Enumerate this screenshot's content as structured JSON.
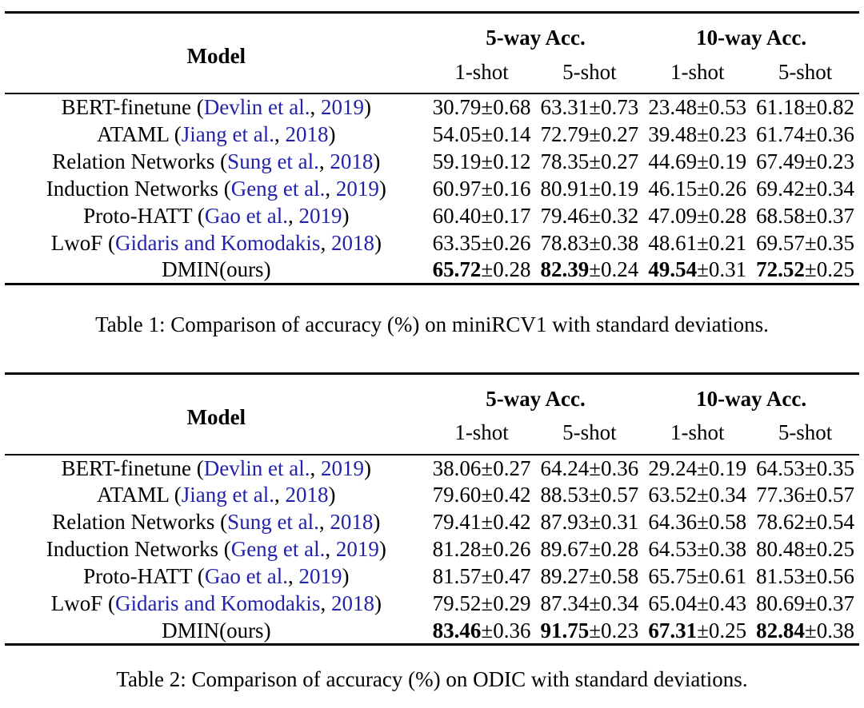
{
  "colors": {
    "citation_link_blue": "#2222aa",
    "text": "#000000",
    "background": "#ffffff"
  },
  "table1": {
    "header": {
      "model": "Model",
      "group1": "5-way Acc.",
      "group2": "10-way Acc.",
      "sub": [
        "1-shot",
        "5-shot",
        "1-shot",
        "5-shot"
      ]
    },
    "rows": [
      {
        "prefix": "BERT-finetune (",
        "author": "Devlin et al.",
        "sep": ", ",
        "year": "2019",
        "suffix": ")",
        "cells": [
          {
            "main": "30.79",
            "pm": "±0.68"
          },
          {
            "main": "63.31",
            "pm": "±0.73"
          },
          {
            "main": "23.48",
            "pm": "±0.53"
          },
          {
            "main": "61.18",
            "pm": "±0.82"
          }
        ]
      },
      {
        "prefix": "ATAML (",
        "author": "Jiang et al.",
        "sep": ", ",
        "year": "2018",
        "suffix": ")",
        "cells": [
          {
            "main": "54.05",
            "pm": "±0.14"
          },
          {
            "main": "72.79",
            "pm": "±0.27"
          },
          {
            "main": "39.48",
            "pm": "±0.23"
          },
          {
            "main": "61.74",
            "pm": "±0.36"
          }
        ]
      },
      {
        "prefix": "Relation Networks (",
        "author": "Sung et al.",
        "sep": ", ",
        "year": "2018",
        "suffix": ")",
        "cells": [
          {
            "main": "59.19",
            "pm": "±0.12"
          },
          {
            "main": "78.35",
            "pm": "±0.27"
          },
          {
            "main": "44.69",
            "pm": "±0.19"
          },
          {
            "main": "67.49",
            "pm": "±0.23"
          }
        ]
      },
      {
        "prefix": "Induction Networks (",
        "author": "Geng et al.",
        "sep": ", ",
        "year": "2019",
        "suffix": ")",
        "cells": [
          {
            "main": "60.97",
            "pm": "±0.16"
          },
          {
            "main": "80.91",
            "pm": "±0.19"
          },
          {
            "main": "46.15",
            "pm": "±0.26"
          },
          {
            "main": "69.42",
            "pm": "±0.34"
          }
        ]
      },
      {
        "prefix": "Proto-HATT (",
        "author": "Gao et al.",
        "sep": ", ",
        "year": "2019",
        "suffix": ")",
        "cells": [
          {
            "main": "60.40",
            "pm": "±0.17"
          },
          {
            "main": "79.46",
            "pm": "±0.32"
          },
          {
            "main": "47.09",
            "pm": "±0.28"
          },
          {
            "main": "68.58",
            "pm": "±0.37"
          }
        ]
      },
      {
        "prefix": "LwoF (",
        "author": "Gidaris and Komodakis",
        "sep": ", ",
        "year": "2018",
        "suffix": ")",
        "cells": [
          {
            "main": "63.35",
            "pm": "±0.26"
          },
          {
            "main": "78.83",
            "pm": "±0.38"
          },
          {
            "main": "48.61",
            "pm": "±0.21"
          },
          {
            "main": "69.57",
            "pm": "±0.35"
          }
        ]
      },
      {
        "prefix": "DMIN(ours)",
        "author": "",
        "sep": "",
        "year": "",
        "suffix": "",
        "cells": [
          {
            "main": "65.72",
            "pm": "±0.28"
          },
          {
            "main": "82.39",
            "pm": "±0.24"
          },
          {
            "main": "49.54",
            "pm": "±0.31"
          },
          {
            "main": "72.52",
            "pm": "±0.25"
          }
        ]
      }
    ],
    "caption": "Table 1: Comparison of accuracy (%) on miniRCV1 with standard deviations."
  },
  "table2": {
    "header": {
      "model": "Model",
      "group1": "5-way Acc.",
      "group2": "10-way Acc.",
      "sub": [
        "1-shot",
        "5-shot",
        "1-shot",
        "5-shot"
      ]
    },
    "rows": [
      {
        "prefix": "BERT-finetune (",
        "author": "Devlin et al.",
        "sep": ", ",
        "year": "2019",
        "suffix": ")",
        "cells": [
          {
            "main": "38.06",
            "pm": "±0.27"
          },
          {
            "main": "64.24",
            "pm": "±0.36"
          },
          {
            "main": "29.24",
            "pm": "±0.19"
          },
          {
            "main": "64.53",
            "pm": "±0.35"
          }
        ]
      },
      {
        "prefix": "ATAML (",
        "author": "Jiang et al.",
        "sep": ", ",
        "year": "2018",
        "suffix": ")",
        "cells": [
          {
            "main": "79.60",
            "pm": "±0.42"
          },
          {
            "main": "88.53",
            "pm": "±0.57"
          },
          {
            "main": "63.52",
            "pm": "±0.34"
          },
          {
            "main": "77.36",
            "pm": "±0.57"
          }
        ]
      },
      {
        "prefix": "Relation Networks (",
        "author": "Sung et al.",
        "sep": ", ",
        "year": "2018",
        "suffix": ")",
        "cells": [
          {
            "main": "79.41",
            "pm": "±0.42"
          },
          {
            "main": "87.93",
            "pm": "±0.31"
          },
          {
            "main": "64.36",
            "pm": "±0.58"
          },
          {
            "main": "78.62",
            "pm": "±0.54"
          }
        ]
      },
      {
        "prefix": "Induction Networks (",
        "author": "Geng et al.",
        "sep": ", ",
        "year": "2019",
        "suffix": ")",
        "cells": [
          {
            "main": "81.28",
            "pm": "±0.26"
          },
          {
            "main": "89.67",
            "pm": "±0.28"
          },
          {
            "main": "64.53",
            "pm": "±0.38"
          },
          {
            "main": "80.48",
            "pm": "±0.25"
          }
        ]
      },
      {
        "prefix": "Proto-HATT (",
        "author": "Gao et al.",
        "sep": ", ",
        "year": "2019",
        "suffix": ")",
        "cells": [
          {
            "main": "81.57",
            "pm": "±0.47"
          },
          {
            "main": "89.27",
            "pm": "±0.58"
          },
          {
            "main": "65.75",
            "pm": "±0.61"
          },
          {
            "main": "81.53",
            "pm": "±0.56"
          }
        ]
      },
      {
        "prefix": "LwoF (",
        "author": "Gidaris and Komodakis",
        "sep": ", ",
        "year": "2018",
        "suffix": ")",
        "cells": [
          {
            "main": "79.52",
            "pm": "±0.29"
          },
          {
            "main": "87.34",
            "pm": "±0.34"
          },
          {
            "main": "65.04",
            "pm": "±0.43"
          },
          {
            "main": "80.69",
            "pm": "±0.37"
          }
        ]
      },
      {
        "prefix": "DMIN(ours)",
        "author": "",
        "sep": "",
        "year": "",
        "suffix": "",
        "cells": [
          {
            "main": "83.46",
            "pm": "±0.36"
          },
          {
            "main": "91.75",
            "pm": "±0.23"
          },
          {
            "main": "67.31",
            "pm": "±0.25"
          },
          {
            "main": "82.84",
            "pm": "±0.38"
          }
        ]
      }
    ],
    "caption": "Table 2: Comparison of accuracy (%) on ODIC with standard deviations."
  }
}
